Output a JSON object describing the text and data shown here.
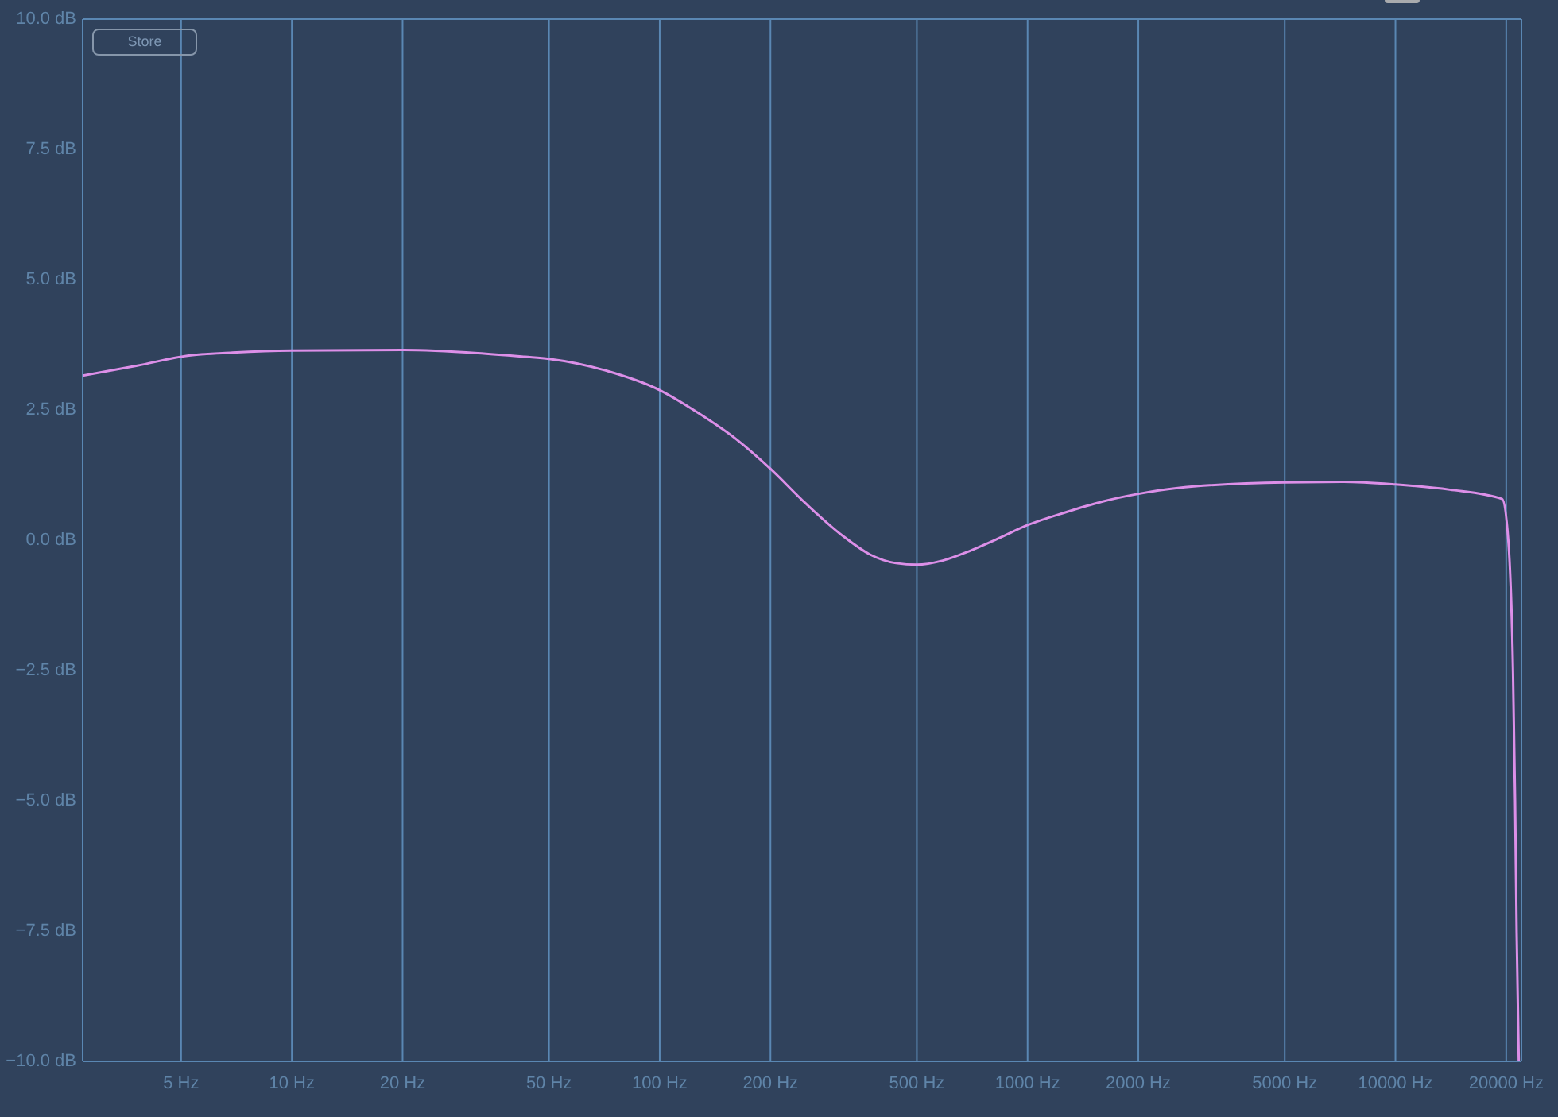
{
  "chart_data": {
    "type": "line",
    "x": [
      2.7,
      3.8,
      5.2,
      6.9,
      10,
      20,
      32,
      43,
      50,
      71,
      100,
      128,
      162,
      200,
      249,
      315,
      372,
      439,
      500,
      588,
      694,
      819,
      1000,
      1261,
      1592,
      2000,
      2535,
      5000,
      7228,
      10000,
      14050,
      19500,
      20260,
      20870,
      21140,
      21350,
      21640
    ],
    "series": [
      {
        "color": "#dc8fe8",
        "values": [
          3.16,
          3.35,
          3.54,
          3.6,
          3.64,
          3.65,
          3.59,
          3.52,
          3.48,
          3.26,
          2.88,
          2.43,
          1.93,
          1.37,
          0.71,
          0.08,
          -0.27,
          -0.44,
          -0.47,
          -0.39,
          -0.21,
          0.01,
          0.29,
          0.53,
          0.74,
          0.89,
          1.0,
          1.11,
          1.12,
          1.07,
          0.97,
          0.79,
          0,
          -2.54,
          -4.99,
          -7.53,
          -10
        ]
      }
    ],
    "xlim": [
      2.7,
      22000
    ],
    "xticks": [
      {
        "value": 5,
        "label": "5 Hz"
      },
      {
        "value": 10,
        "label": "10 Hz"
      },
      {
        "value": 20,
        "label": "20 Hz"
      },
      {
        "value": 50,
        "label": "50 Hz"
      },
      {
        "value": 100,
        "label": "100 Hz"
      },
      {
        "value": 200,
        "label": "200 Hz"
      },
      {
        "value": 500,
        "label": "500 Hz"
      },
      {
        "value": 1000,
        "label": "1000 Hz"
      },
      {
        "value": 2000,
        "label": "2000 Hz"
      },
      {
        "value": 5000,
        "label": "5000 Hz"
      },
      {
        "value": 10000,
        "label": "10000 Hz"
      },
      {
        "value": 20000,
        "label": "20000 Hz"
      }
    ],
    "ylim": [
      -10,
      10
    ],
    "yticks": [
      {
        "value": -10,
        "label": "−10.0 dB"
      },
      {
        "value": -7.5,
        "label": "−7.5 dB"
      },
      {
        "value": -5,
        "label": "−5.0 dB"
      },
      {
        "value": -2.5,
        "label": "−2.5 dB"
      },
      {
        "value": 0,
        "label": "0.0 dB"
      },
      {
        "value": 2.5,
        "label": "2.5 dB"
      },
      {
        "value": 5,
        "label": "5.0 dB"
      },
      {
        "value": 7.5,
        "label": "7.5 dB"
      },
      {
        "value": 10,
        "label": "10.0 dB"
      }
    ],
    "log": "x",
    "grid": true,
    "marker": "none",
    "line_style": "solid",
    "annotations": [
      "Store"
    ]
  }
}
